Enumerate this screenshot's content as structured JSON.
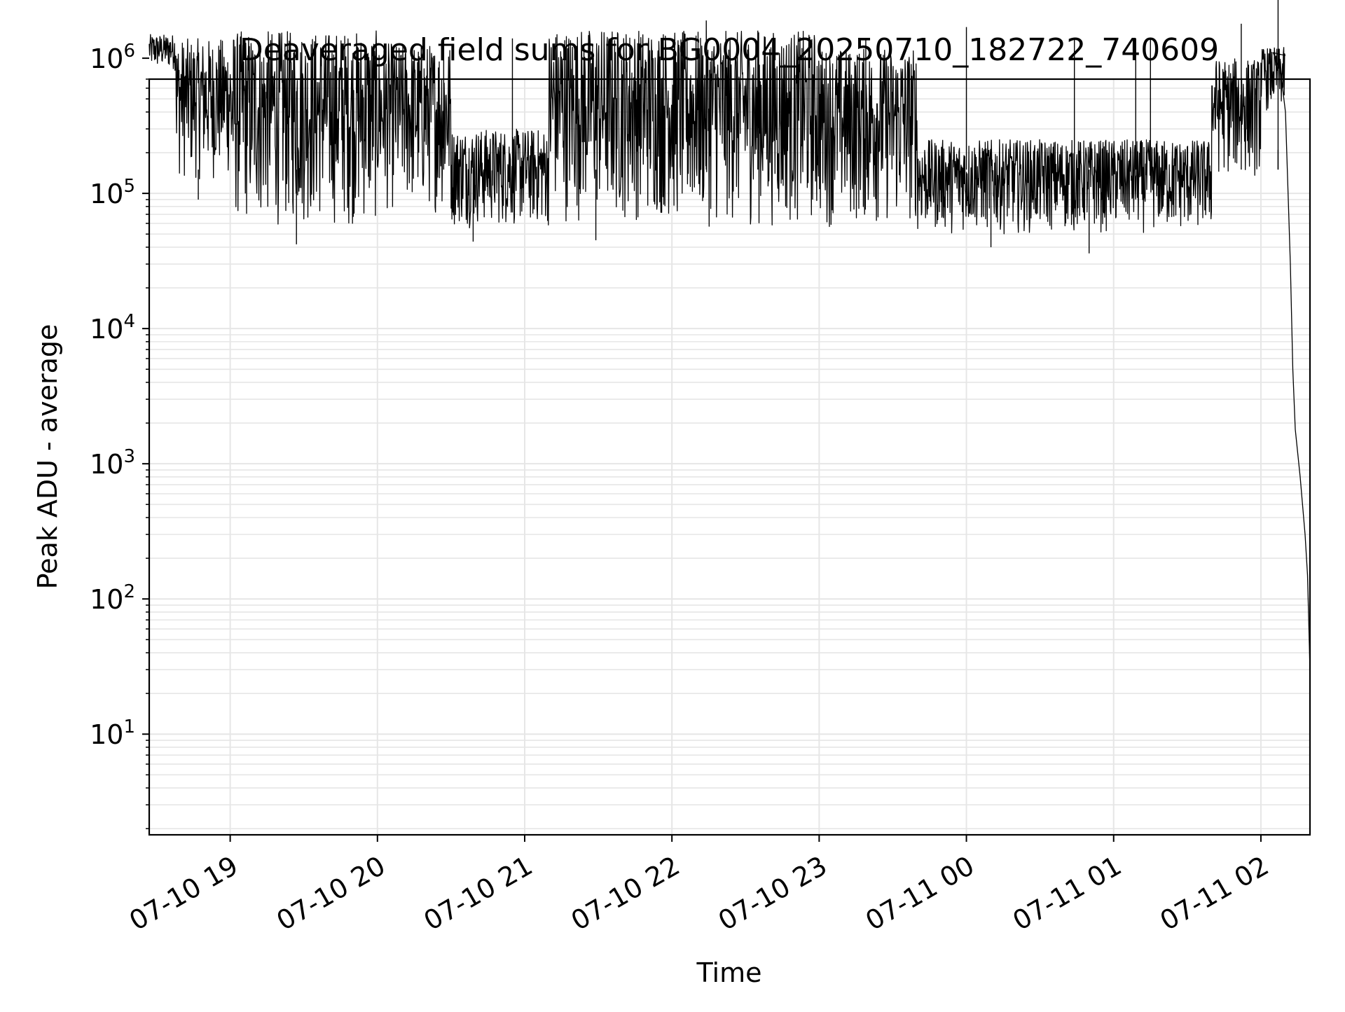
{
  "chart_data": {
    "type": "line",
    "title": "Deaveraged field sums for BG0004_20250710_182722_740609",
    "xlabel": "Time",
    "ylabel": "Peak ADU - average",
    "x_scale": "time",
    "y_scale": "log",
    "xlim": [
      "2025-07-10 18:27",
      "2025-07-11 02:20"
    ],
    "ylim": [
      1.8,
      700000
    ],
    "grid": true,
    "legend": "none",
    "line_color": "#000000",
    "grid_color": "#e6e6e6",
    "x_ticks": [
      {
        "value": "2025-07-10 19:00",
        "label": "07-10 19"
      },
      {
        "value": "2025-07-10 20:00",
        "label": "07-10 20"
      },
      {
        "value": "2025-07-10 21:00",
        "label": "07-10 21"
      },
      {
        "value": "2025-07-10 22:00",
        "label": "07-10 22"
      },
      {
        "value": "2025-07-10 23:00",
        "label": "07-10 23"
      },
      {
        "value": "2025-07-11 00:00",
        "label": "07-11 00"
      },
      {
        "value": "2025-07-11 01:00",
        "label": "07-11 01"
      },
      {
        "value": "2025-07-11 02:00",
        "label": "07-11 02"
      }
    ],
    "y_ticks": [
      {
        "value": 10,
        "base": "10",
        "exp": "1"
      },
      {
        "value": 100,
        "base": "10",
        "exp": "2"
      },
      {
        "value": 1000,
        "base": "10",
        "exp": "3"
      },
      {
        "value": 10000,
        "base": "10",
        "exp": "4"
      },
      {
        "value": 100000,
        "base": "10",
        "exp": "5"
      },
      {
        "value": 1000000,
        "base": "10",
        "exp": "6"
      }
    ],
    "series": [
      {
        "description": "envelope of the dense signal: upper and lower bounds per time segment",
        "envelope": [
          {
            "t0": "2025-07-10 18:27",
            "t1": "2025-07-10 18:38",
            "hi": 1500000,
            "lo": 800000
          },
          {
            "t0": "2025-07-10 18:38",
            "t1": "2025-07-10 19:00",
            "hi": 1400000,
            "lo": 120000
          },
          {
            "t0": "2025-07-10 19:00",
            "t1": "2025-07-10 20:00",
            "hi": 1600000,
            "lo": 55000
          },
          {
            "t0": "2025-07-10 20:00",
            "t1": "2025-07-10 20:30",
            "hi": 1300000,
            "lo": 70000
          },
          {
            "t0": "2025-07-10 20:30",
            "t1": "2025-07-10 21:10",
            "hi": 300000,
            "lo": 55000
          },
          {
            "t0": "2025-07-10 21:10",
            "t1": "2025-07-10 22:00",
            "hi": 1700000,
            "lo": 60000
          },
          {
            "t0": "2025-07-10 22:00",
            "t1": "2025-07-10 23:00",
            "hi": 1600000,
            "lo": 55000
          },
          {
            "t0": "2025-07-10 23:00",
            "t1": "2025-07-10 23:40",
            "hi": 1200000,
            "lo": 55000
          },
          {
            "t0": "2025-07-10 23:40",
            "t1": "2025-07-11 01:40",
            "hi": 250000,
            "lo": 50000
          },
          {
            "t0": "2025-07-11 01:40",
            "t1": "2025-07-11 02:00",
            "hi": 1000000,
            "lo": 130000
          },
          {
            "t0": "2025-07-11 02:00",
            "t1": "2025-07-11 02:10",
            "hi": 1200000,
            "lo": 400000
          }
        ],
        "spikes": [
          {
            "t": "2025-07-10 18:47",
            "value": 90000
          },
          {
            "t": "2025-07-10 19:27",
            "value": 42000
          },
          {
            "t": "2025-07-10 20:27",
            "value": 1400000
          },
          {
            "t": "2025-07-10 20:39",
            "value": 44000
          },
          {
            "t": "2025-07-10 20:55",
            "value": 1400000
          },
          {
            "t": "2025-07-10 21:29",
            "value": 45000
          },
          {
            "t": "2025-07-10 22:14",
            "value": 1900000
          },
          {
            "t": "2025-07-10 22:35",
            "value": 1600000
          },
          {
            "t": "2025-07-10 23:19",
            "value": 1400000
          },
          {
            "t": "2025-07-11 00:00",
            "value": 1700000
          },
          {
            "t": "2025-07-11 00:10",
            "value": 40000
          },
          {
            "t": "2025-07-11 00:44",
            "value": 1400000
          },
          {
            "t": "2025-07-11 00:50",
            "value": 36000
          },
          {
            "t": "2025-07-11 01:09",
            "value": 1400000
          },
          {
            "t": "2025-07-11 01:15",
            "value": 1400000
          },
          {
            "t": "2025-07-11 01:52",
            "value": 1800000
          },
          {
            "t": "2025-07-11 02:07",
            "value": 3500000
          },
          {
            "t": "2025-07-11 02:07",
            "value": 210000
          }
        ],
        "decay_tail": [
          {
            "t": "2025-07-11 02:05",
            "value": 1100000
          },
          {
            "t": "2025-07-11 02:08",
            "value": 800000
          },
          {
            "t": "2025-07-11 02:10",
            "value": 400000
          },
          {
            "t": "2025-07-11 02:12",
            "value": 30000
          },
          {
            "t": "2025-07-11 02:13",
            "value": 5000
          },
          {
            "t": "2025-07-11 02:14",
            "value": 1800
          },
          {
            "t": "2025-07-11 02:16",
            "value": 800
          },
          {
            "t": "2025-07-11 02:18",
            "value": 300
          },
          {
            "t": "2025-07-11 02:19",
            "value": 150
          },
          {
            "t": "2025-07-11 02:20",
            "value": 30
          }
        ]
      }
    ]
  }
}
